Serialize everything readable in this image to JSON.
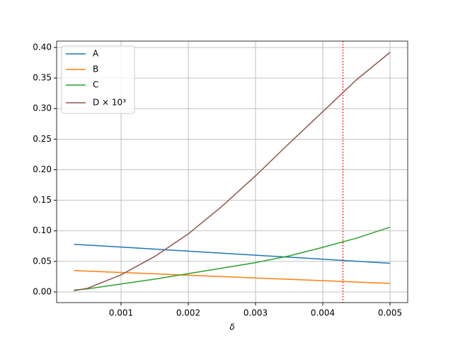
{
  "chart_data": {
    "type": "line",
    "xlabel": "δ",
    "x": [
      0.0003,
      0.0005,
      0.001,
      0.0015,
      0.002,
      0.0025,
      0.003,
      0.0035,
      0.004,
      0.0045,
      0.005
    ],
    "series": [
      {
        "name": "A",
        "color": "#1f77b4",
        "values": [
          0.078,
          0.0767,
          0.0734,
          0.0701,
          0.0668,
          0.0635,
          0.0602,
          0.0569,
          0.0536,
          0.0503,
          0.047
        ]
      },
      {
        "name": "B",
        "color": "#ff7f0e",
        "values": [
          0.035,
          0.0341,
          0.0319,
          0.0297,
          0.0274,
          0.0252,
          0.0229,
          0.0207,
          0.0185,
          0.0162,
          0.014
        ]
      },
      {
        "name": "C",
        "color": "#2ca02c",
        "values": [
          0.003,
          0.005,
          0.013,
          0.021,
          0.03,
          0.039,
          0.048,
          0.059,
          0.073,
          0.088,
          0.106
        ]
      },
      {
        "name": "D × 10³",
        "color": "#8c564b",
        "values": [
          0.002,
          0.006,
          0.028,
          0.058,
          0.095,
          0.14,
          0.19,
          0.243,
          0.295,
          0.347,
          0.392
        ]
      }
    ],
    "vlines": [
      {
        "x": 0.0043,
        "color": "red"
      }
    ],
    "xlim": [
      4.2e-05,
      0.005263
    ],
    "ylim": [
      -0.0174,
      0.4104
    ],
    "xticks": [
      0.001,
      0.002,
      0.003,
      0.004,
      0.005
    ],
    "yticks": [
      {
        "value": 0,
        "label": "0.00"
      },
      {
        "value": 0.05,
        "label": "0.05"
      },
      {
        "value": 0.1,
        "label": "0.10"
      },
      {
        "value": 0.15,
        "label": "0.15"
      },
      {
        "value": 0.2,
        "label": "0.20"
      },
      {
        "value": 0.25,
        "label": "0.25"
      },
      {
        "value": 0.3,
        "label": "0.30"
      },
      {
        "value": 0.35,
        "label": "0.35"
      },
      {
        "value": 0.4,
        "label": "0.40"
      }
    ],
    "grid": true,
    "legend": "upper-left"
  }
}
